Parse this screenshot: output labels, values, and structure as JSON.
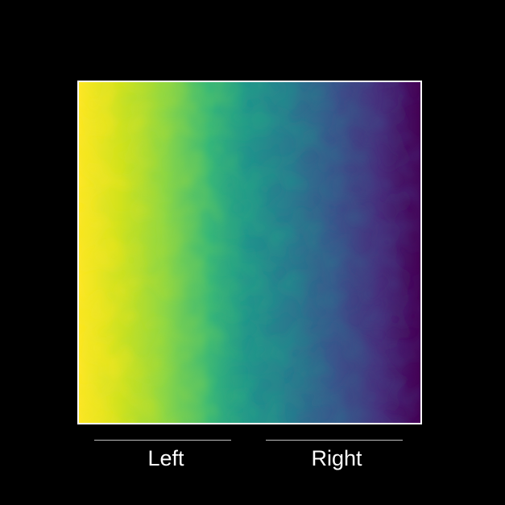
{
  "labels": {
    "left": "Left",
    "right": "Right"
  },
  "field": {
    "colormap": "viridis",
    "gradient_direction": "left-to-right",
    "left_color": "#fde725",
    "middle_color": "#21918c",
    "right_color": "#440154",
    "frame_color": "#ffffff",
    "background": "#000000"
  }
}
